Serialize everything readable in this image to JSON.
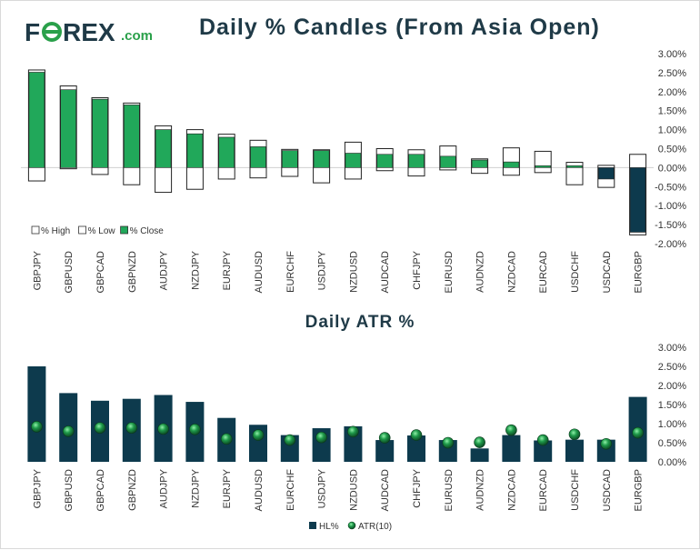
{
  "logo": {
    "brand_pre": "F",
    "brand_post": "REX",
    "brand_tld": ".com",
    "icon": "forex-dollar-coin-icon"
  },
  "colors": {
    "navy": "#0d3a4d",
    "green": "#21a85a",
    "title": "#1f3a47",
    "logo_green": "#2aa04a",
    "axis_text": "#333333"
  },
  "chart_data": [
    {
      "type": "bar",
      "subtype": "floating-candle",
      "title": "Daily % Candles (From Asia Open)",
      "categories": [
        "GBPJPY",
        "GBPUSD",
        "GBPCAD",
        "GBPNZD",
        "AUDJPY",
        "NZDJPY",
        "EURJPY",
        "AUDUSD",
        "EURCHF",
        "USDJPY",
        "NZDUSD",
        "AUDCAD",
        "CHFJPY",
        "EURUSD",
        "AUDNZD",
        "NZDCAD",
        "EURCAD",
        "USDCHF",
        "USDCAD",
        "EURGBP"
      ],
      "series": [
        {
          "name": "% High",
          "values": [
            2.57,
            2.15,
            1.84,
            1.7,
            1.1,
            1.0,
            0.88,
            0.72,
            0.48,
            0.47,
            0.67,
            0.5,
            0.47,
            0.57,
            0.23,
            0.52,
            0.43,
            0.14,
            0.06,
            0.35
          ]
        },
        {
          "name": "% Low",
          "values": [
            -0.35,
            -0.03,
            -0.18,
            -0.45,
            -0.65,
            -0.57,
            -0.3,
            -0.27,
            -0.23,
            -0.4,
            -0.3,
            -0.08,
            -0.22,
            -0.06,
            -0.15,
            -0.2,
            -0.13,
            -0.45,
            -0.52,
            -1.77
          ]
        },
        {
          "name": "% Close",
          "values": [
            2.51,
            2.05,
            1.8,
            1.65,
            1.0,
            0.89,
            0.8,
            0.55,
            0.45,
            0.45,
            0.38,
            0.35,
            0.35,
            0.3,
            0.2,
            0.15,
            0.05,
            0.05,
            -0.3,
            -1.7
          ]
        }
      ],
      "ylim": [
        -2.0,
        3.0
      ],
      "yticks": [
        "-2.00%",
        "-1.50%",
        "-1.00%",
        "-0.50%",
        "0.00%",
        "0.50%",
        "1.00%",
        "1.50%",
        "2.00%",
        "2.50%",
        "3.00%"
      ],
      "ytick_values": [
        -2.0,
        -1.5,
        -1.0,
        -0.5,
        0.0,
        0.5,
        1.0,
        1.5,
        2.0,
        2.5,
        3.0
      ],
      "legend": [
        "% High",
        "% Low",
        "% Close"
      ],
      "legend_position": "bottom-left"
    },
    {
      "type": "bar",
      "subtype": "bar-with-markers",
      "title": "Daily ATR %",
      "categories": [
        "GBPJPY",
        "GBPUSD",
        "GBPCAD",
        "GBPNZD",
        "AUDJPY",
        "NZDJPY",
        "EURJPY",
        "AUDUSD",
        "EURCHF",
        "USDJPY",
        "NZDUSD",
        "AUDCAD",
        "CHFJPY",
        "EURUSD",
        "AUDNZD",
        "NZDCAD",
        "EURCAD",
        "USDCHF",
        "USDCAD",
        "EURGBP"
      ],
      "series": [
        {
          "name": "HL%",
          "values": [
            2.5,
            1.8,
            1.6,
            1.65,
            1.75,
            1.57,
            1.15,
            0.97,
            0.7,
            0.88,
            0.93,
            0.57,
            0.69,
            0.57,
            0.35,
            0.7,
            0.56,
            0.58,
            0.58,
            1.7
          ]
        },
        {
          "name": "ATR(10)",
          "values": [
            0.92,
            0.8,
            0.89,
            0.89,
            0.86,
            0.85,
            0.6,
            0.7,
            0.57,
            0.64,
            0.79,
            0.63,
            0.7,
            0.5,
            0.51,
            0.83,
            0.57,
            0.72,
            0.47,
            0.76
          ]
        }
      ],
      "ylim": [
        0.0,
        3.0
      ],
      "yticks": [
        "0.00%",
        "0.50%",
        "1.00%",
        "1.50%",
        "2.00%",
        "2.50%",
        "3.00%"
      ],
      "ytick_values": [
        0.0,
        0.5,
        1.0,
        1.5,
        2.0,
        2.5,
        3.0
      ],
      "legend": [
        "HL%",
        "ATR(10)"
      ],
      "legend_position": "bottom-center"
    }
  ]
}
